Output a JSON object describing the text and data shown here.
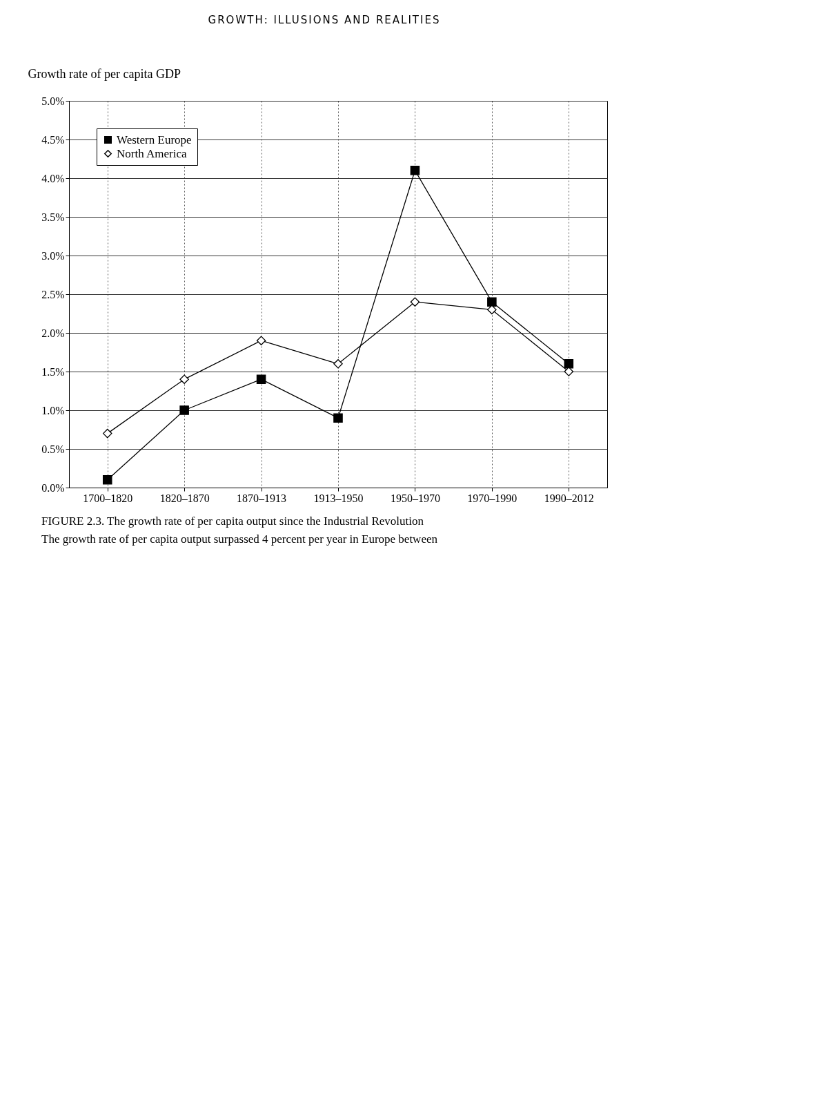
{
  "chart_data": {
    "type": "line",
    "ylabel": "Growth rate of per capita GDP",
    "categories": [
      "1700–1820",
      "1820–1870",
      "1870–1913",
      "1913–1950",
      "1950–1970",
      "1970–1990",
      "1990–2012"
    ],
    "series": [
      {
        "name": "Western Europe",
        "color": "#000000",
        "marker": "square",
        "values": [
          0.1,
          1.0,
          1.4,
          0.9,
          4.1,
          2.4,
          1.6
        ]
      },
      {
        "name": "North America",
        "color": "#000000",
        "marker": "diamond",
        "values": [
          0.7,
          1.4,
          1.9,
          1.6,
          2.4,
          2.3,
          1.5
        ]
      }
    ],
    "ylim": [
      0,
      5
    ],
    "yticks": [
      {
        "value": 0,
        "label": "0.0%"
      },
      {
        "value": 0.5,
        "label": "0.5%"
      },
      {
        "value": 1,
        "label": "1.0%"
      },
      {
        "value": 1.5,
        "label": "1.5%"
      },
      {
        "value": 2,
        "label": "2.0%"
      },
      {
        "value": 2.5,
        "label": "2.5%"
      },
      {
        "value": 3,
        "label": "3.0%"
      },
      {
        "value": 3.5,
        "label": "3.5%"
      },
      {
        "value": 4,
        "label": "4.0%"
      },
      {
        "value": 4.5,
        "label": "4.5%"
      },
      {
        "value": 5,
        "label": "5.0%"
      }
    ],
    "grid": true,
    "legend": "top left",
    "annotations": [
      "GROWTH: ILLUSIONS AND REALITIES",
      "FIGURE 2.3. The growth rate of per capita output since the Industrial Revolution",
      "The growth rate of per capita output surpassed 4 percent per year in Europe between"
    ]
  }
}
